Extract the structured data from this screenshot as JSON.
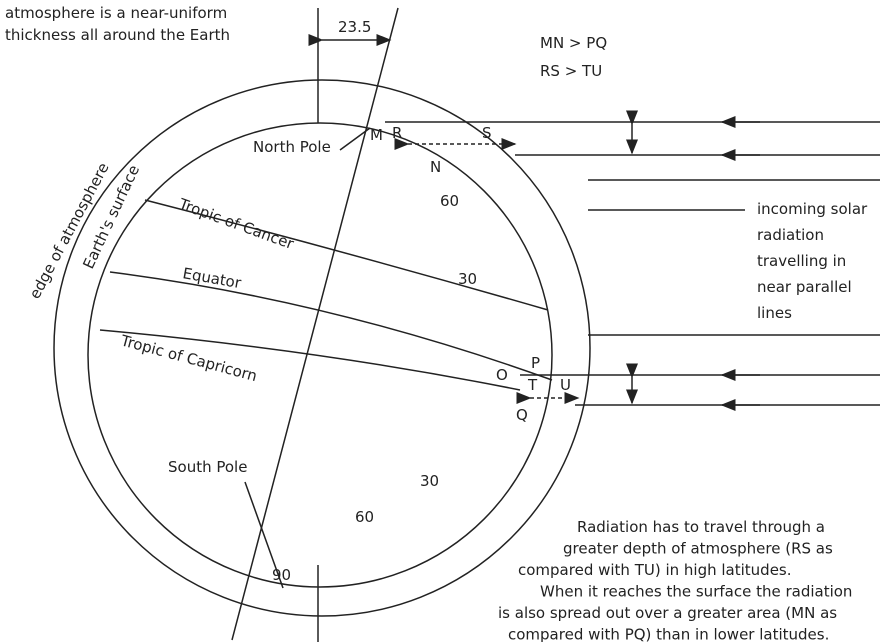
{
  "labels": {
    "note": [
      "atmosphere is a near-uniform",
      "thickness all around the Earth"
    ],
    "angle": "23.5",
    "relations": [
      "MN > PQ",
      "RS  > TU"
    ],
    "north_pole": "North Pole",
    "south_pole": "South Pole",
    "edge": "edge of atmosphere",
    "surface": "Earth's surface",
    "cancer": "Tropic of Cancer",
    "equator": "Equator",
    "capricorn": "Tropic of Capricorn",
    "points": [
      "M",
      "R",
      "S",
      "N",
      "O",
      "P",
      "T",
      "U",
      "Q"
    ],
    "latitudes": [
      "60",
      "30",
      "30",
      "60",
      "90"
    ],
    "incoming": [
      "incoming solar",
      "radiation",
      "travelling in",
      "near parallel",
      "lines"
    ],
    "explanation": [
      "Radiation has to travel through a",
      "greater depth of atmosphere (RS as",
      "compared with TU) in high latitudes.",
      "When it reaches the surface the radiation",
      "is also spread out over a greater area (MN as",
      "compared with PQ) than in lower latitudes."
    ]
  }
}
